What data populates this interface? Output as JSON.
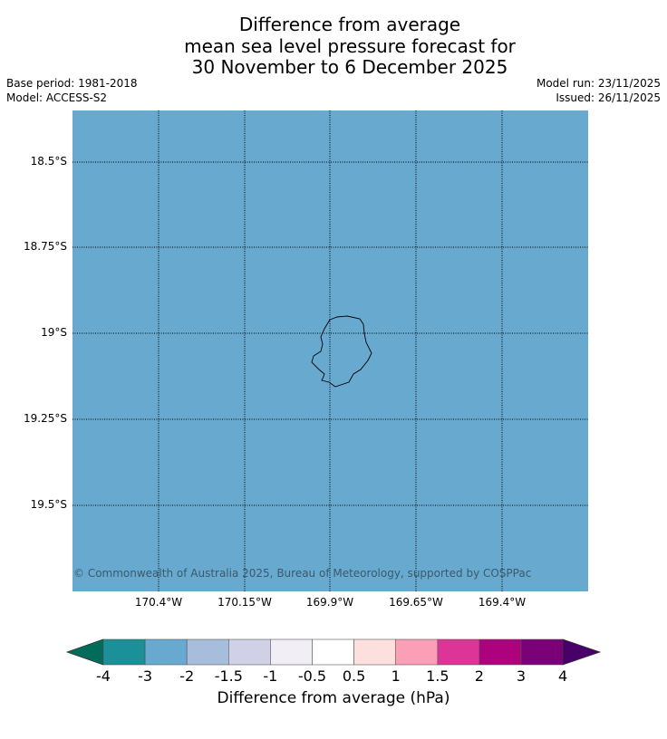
{
  "title": [
    "Difference from average",
    "mean sea level pressure forecast for",
    "30 November to 6 December 2025"
  ],
  "left_meta": [
    "Base period: 1981-2018",
    "Model: ACCESS-S2"
  ],
  "right_meta": [
    "Model run: 23/11/2025",
    "Issued: 26/11/2025"
  ],
  "map": {
    "fill_color": "#67a9cf",
    "lat_labels": [
      "18.5°S",
      "18.75°S",
      "19°S",
      "19.25°S",
      "19.5°S"
    ],
    "lon_labels": [
      "170.4°W",
      "170.15°W",
      "169.9°W",
      "169.65°W",
      "169.4°W"
    ],
    "copyright": "© Commonwealth of Australia 2025, Bureau of Meteorology, supported by COSPPac"
  },
  "colorbar": {
    "label": "Difference from average (hPa)",
    "ticks": [
      "-4",
      "-3",
      "-2",
      "-1.5",
      "-1",
      "-0.5",
      "0.5",
      "1",
      "1.5",
      "2",
      "3",
      "4"
    ],
    "under_color": "#016c59",
    "over_color": "#49006a",
    "colors": [
      "#1c9099",
      "#67a9cf",
      "#a6bddb",
      "#d0d1e6",
      "#f1eef6",
      "#ffffff",
      "#fde0dd",
      "#fa9fb5",
      "#dd3497",
      "#ae017e",
      "#7a0177"
    ]
  }
}
